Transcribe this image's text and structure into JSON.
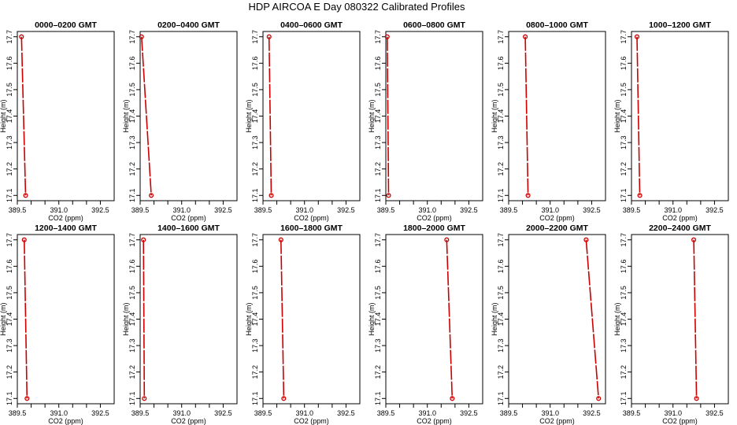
{
  "page": {
    "title": "HDP  AIRCOA E  Day 080322  Calibrated Profiles"
  },
  "colors": {
    "profile": "#cc0000",
    "axis": "#000000",
    "background": "#ffffff"
  },
  "chart_data": [
    {
      "type": "line",
      "title": "0000–0200 GMT",
      "xlabel": "CO2 (ppm)",
      "ylabel": "Height (m)",
      "xlim": [
        389.5,
        393.0
      ],
      "ylim": [
        17.08,
        17.72
      ],
      "xticks": [
        "389.5",
        "391.0",
        "392.5"
      ],
      "yticks": [
        "17.1",
        "17.2",
        "17.3",
        "17.4",
        "17.5",
        "17.6",
        "17.7"
      ],
      "series": [
        {
          "x": [
            389.65,
            389.8
          ],
          "y": [
            17.7,
            17.1
          ]
        }
      ]
    },
    {
      "type": "line",
      "title": "0200–0400 GMT",
      "xlabel": "CO2 (ppm)",
      "ylabel": "Height (m)",
      "xlim": [
        389.5,
        393.0
      ],
      "ylim": [
        17.08,
        17.72
      ],
      "xticks": [
        "389.5",
        "391.0",
        "392.5"
      ],
      "yticks": [
        "17.1",
        "17.2",
        "17.3",
        "17.4",
        "17.5",
        "17.6",
        "17.7"
      ],
      "series": [
        {
          "x": [
            389.55,
            389.9
          ],
          "y": [
            17.7,
            17.1
          ]
        }
      ]
    },
    {
      "type": "line",
      "title": "0400–0600 GMT",
      "xlabel": "CO2 (ppm)",
      "ylabel": "Height (m)",
      "xlim": [
        389.5,
        393.0
      ],
      "ylim": [
        17.08,
        17.72
      ],
      "xticks": [
        "389.5",
        "391.0",
        "392.5"
      ],
      "yticks": [
        "17.1",
        "17.2",
        "17.3",
        "17.4",
        "17.5",
        "17.6",
        "17.7"
      ],
      "series": [
        {
          "x": [
            389.72,
            389.8
          ],
          "y": [
            17.7,
            17.1
          ]
        }
      ]
    },
    {
      "type": "line",
      "title": "0600–0800 GMT",
      "xlabel": "CO2 (ppm)",
      "ylabel": "Height (m)",
      "xlim": [
        389.5,
        393.0
      ],
      "ylim": [
        17.08,
        17.72
      ],
      "xticks": [
        "389.5",
        "391.0",
        "392.5"
      ],
      "yticks": [
        "17.1",
        "17.2",
        "17.3",
        "17.4",
        "17.5",
        "17.6",
        "17.7"
      ],
      "series": [
        {
          "x": [
            389.55,
            389.6
          ],
          "y": [
            17.7,
            17.1
          ]
        }
      ]
    },
    {
      "type": "line",
      "title": "0800–1000 GMT",
      "xlabel": "CO2 (ppm)",
      "ylabel": "Height (m)",
      "xlim": [
        389.5,
        393.0
      ],
      "ylim": [
        17.08,
        17.72
      ],
      "xticks": [
        "389.5",
        "391.0",
        "392.5"
      ],
      "yticks": [
        "17.1",
        "17.2",
        "17.3",
        "17.4",
        "17.5",
        "17.6",
        "17.7"
      ],
      "series": [
        {
          "x": [
            390.1,
            390.2
          ],
          "y": [
            17.7,
            17.1
          ]
        }
      ]
    },
    {
      "type": "line",
      "title": "1000–1200 GMT",
      "xlabel": "CO2 (ppm)",
      "ylabel": "Height (m)",
      "xlim": [
        389.5,
        393.0
      ],
      "ylim": [
        17.08,
        17.72
      ],
      "xticks": [
        "389.5",
        "391.0",
        "392.5"
      ],
      "yticks": [
        "17.1",
        "17.2",
        "17.3",
        "17.4",
        "17.5",
        "17.6",
        "17.7"
      ],
      "series": [
        {
          "x": [
            389.7,
            389.8
          ],
          "y": [
            17.7,
            17.1
          ]
        }
      ]
    },
    {
      "type": "line",
      "title": "1200–1400 GMT",
      "xlabel": "CO2 (ppm)",
      "ylabel": "Height (m)",
      "xlim": [
        389.5,
        393.0
      ],
      "ylim": [
        17.08,
        17.72
      ],
      "xticks": [
        "389.5",
        "391.0",
        "392.5"
      ],
      "yticks": [
        "17.1",
        "17.2",
        "17.3",
        "17.4",
        "17.5",
        "17.6",
        "17.7"
      ],
      "series": [
        {
          "x": [
            389.75,
            389.85
          ],
          "y": [
            17.7,
            17.1
          ]
        }
      ]
    },
    {
      "type": "line",
      "title": "1400–1600 GMT",
      "xlabel": "CO2 (ppm)",
      "ylabel": "Height (m)",
      "xlim": [
        389.5,
        393.0
      ],
      "ylim": [
        17.08,
        17.72
      ],
      "xticks": [
        "389.5",
        "391.0",
        "392.5"
      ],
      "yticks": [
        "17.1",
        "17.2",
        "17.3",
        "17.4",
        "17.5",
        "17.6",
        "17.7"
      ],
      "series": [
        {
          "x": [
            389.62,
            389.65
          ],
          "y": [
            17.7,
            17.1
          ]
        }
      ]
    },
    {
      "type": "line",
      "title": "1600–1800 GMT",
      "xlabel": "CO2 (ppm)",
      "ylabel": "Height (m)",
      "xlim": [
        389.5,
        393.0
      ],
      "ylim": [
        17.08,
        17.72
      ],
      "xticks": [
        "389.5",
        "391.0",
        "392.5"
      ],
      "yticks": [
        "17.1",
        "17.2",
        "17.3",
        "17.4",
        "17.5",
        "17.6",
        "17.7"
      ],
      "series": [
        {
          "x": [
            390.15,
            390.25
          ],
          "y": [
            17.7,
            17.1
          ]
        }
      ]
    },
    {
      "type": "line",
      "title": "1800–2000 GMT",
      "xlabel": "CO2 (ppm)",
      "ylabel": "Height (m)",
      "xlim": [
        389.5,
        393.0
      ],
      "ylim": [
        17.08,
        17.72
      ],
      "xticks": [
        "389.5",
        "391.0",
        "392.5"
      ],
      "yticks": [
        "17.1",
        "17.2",
        "17.3",
        "17.4",
        "17.5",
        "17.6",
        "17.7"
      ],
      "series": [
        {
          "x": [
            391.7,
            391.9
          ],
          "y": [
            17.7,
            17.1
          ]
        }
      ]
    },
    {
      "type": "line",
      "title": "2000–2200 GMT",
      "xlabel": "CO2 (ppm)",
      "ylabel": "Height (m)",
      "xlim": [
        389.5,
        393.0
      ],
      "ylim": [
        17.08,
        17.72
      ],
      "xticks": [
        "389.5",
        "391.0",
        "392.5"
      ],
      "yticks": [
        "17.1",
        "17.2",
        "17.3",
        "17.4",
        "17.5",
        "17.6",
        "17.7"
      ],
      "series": [
        {
          "x": [
            392.3,
            392.75
          ],
          "y": [
            17.7,
            17.1
          ]
        }
      ]
    },
    {
      "type": "line",
      "title": "2200–2400 GMT",
      "xlabel": "CO2 (ppm)",
      "ylabel": "Height (m)",
      "xlim": [
        389.5,
        393.0
      ],
      "ylim": [
        17.08,
        17.72
      ],
      "xticks": [
        "389.5",
        "391.0",
        "392.5"
      ],
      "yticks": [
        "17.1",
        "17.2",
        "17.3",
        "17.4",
        "17.5",
        "17.6",
        "17.7"
      ],
      "series": [
        {
          "x": [
            391.75,
            391.85
          ],
          "y": [
            17.7,
            17.1
          ]
        }
      ]
    }
  ]
}
